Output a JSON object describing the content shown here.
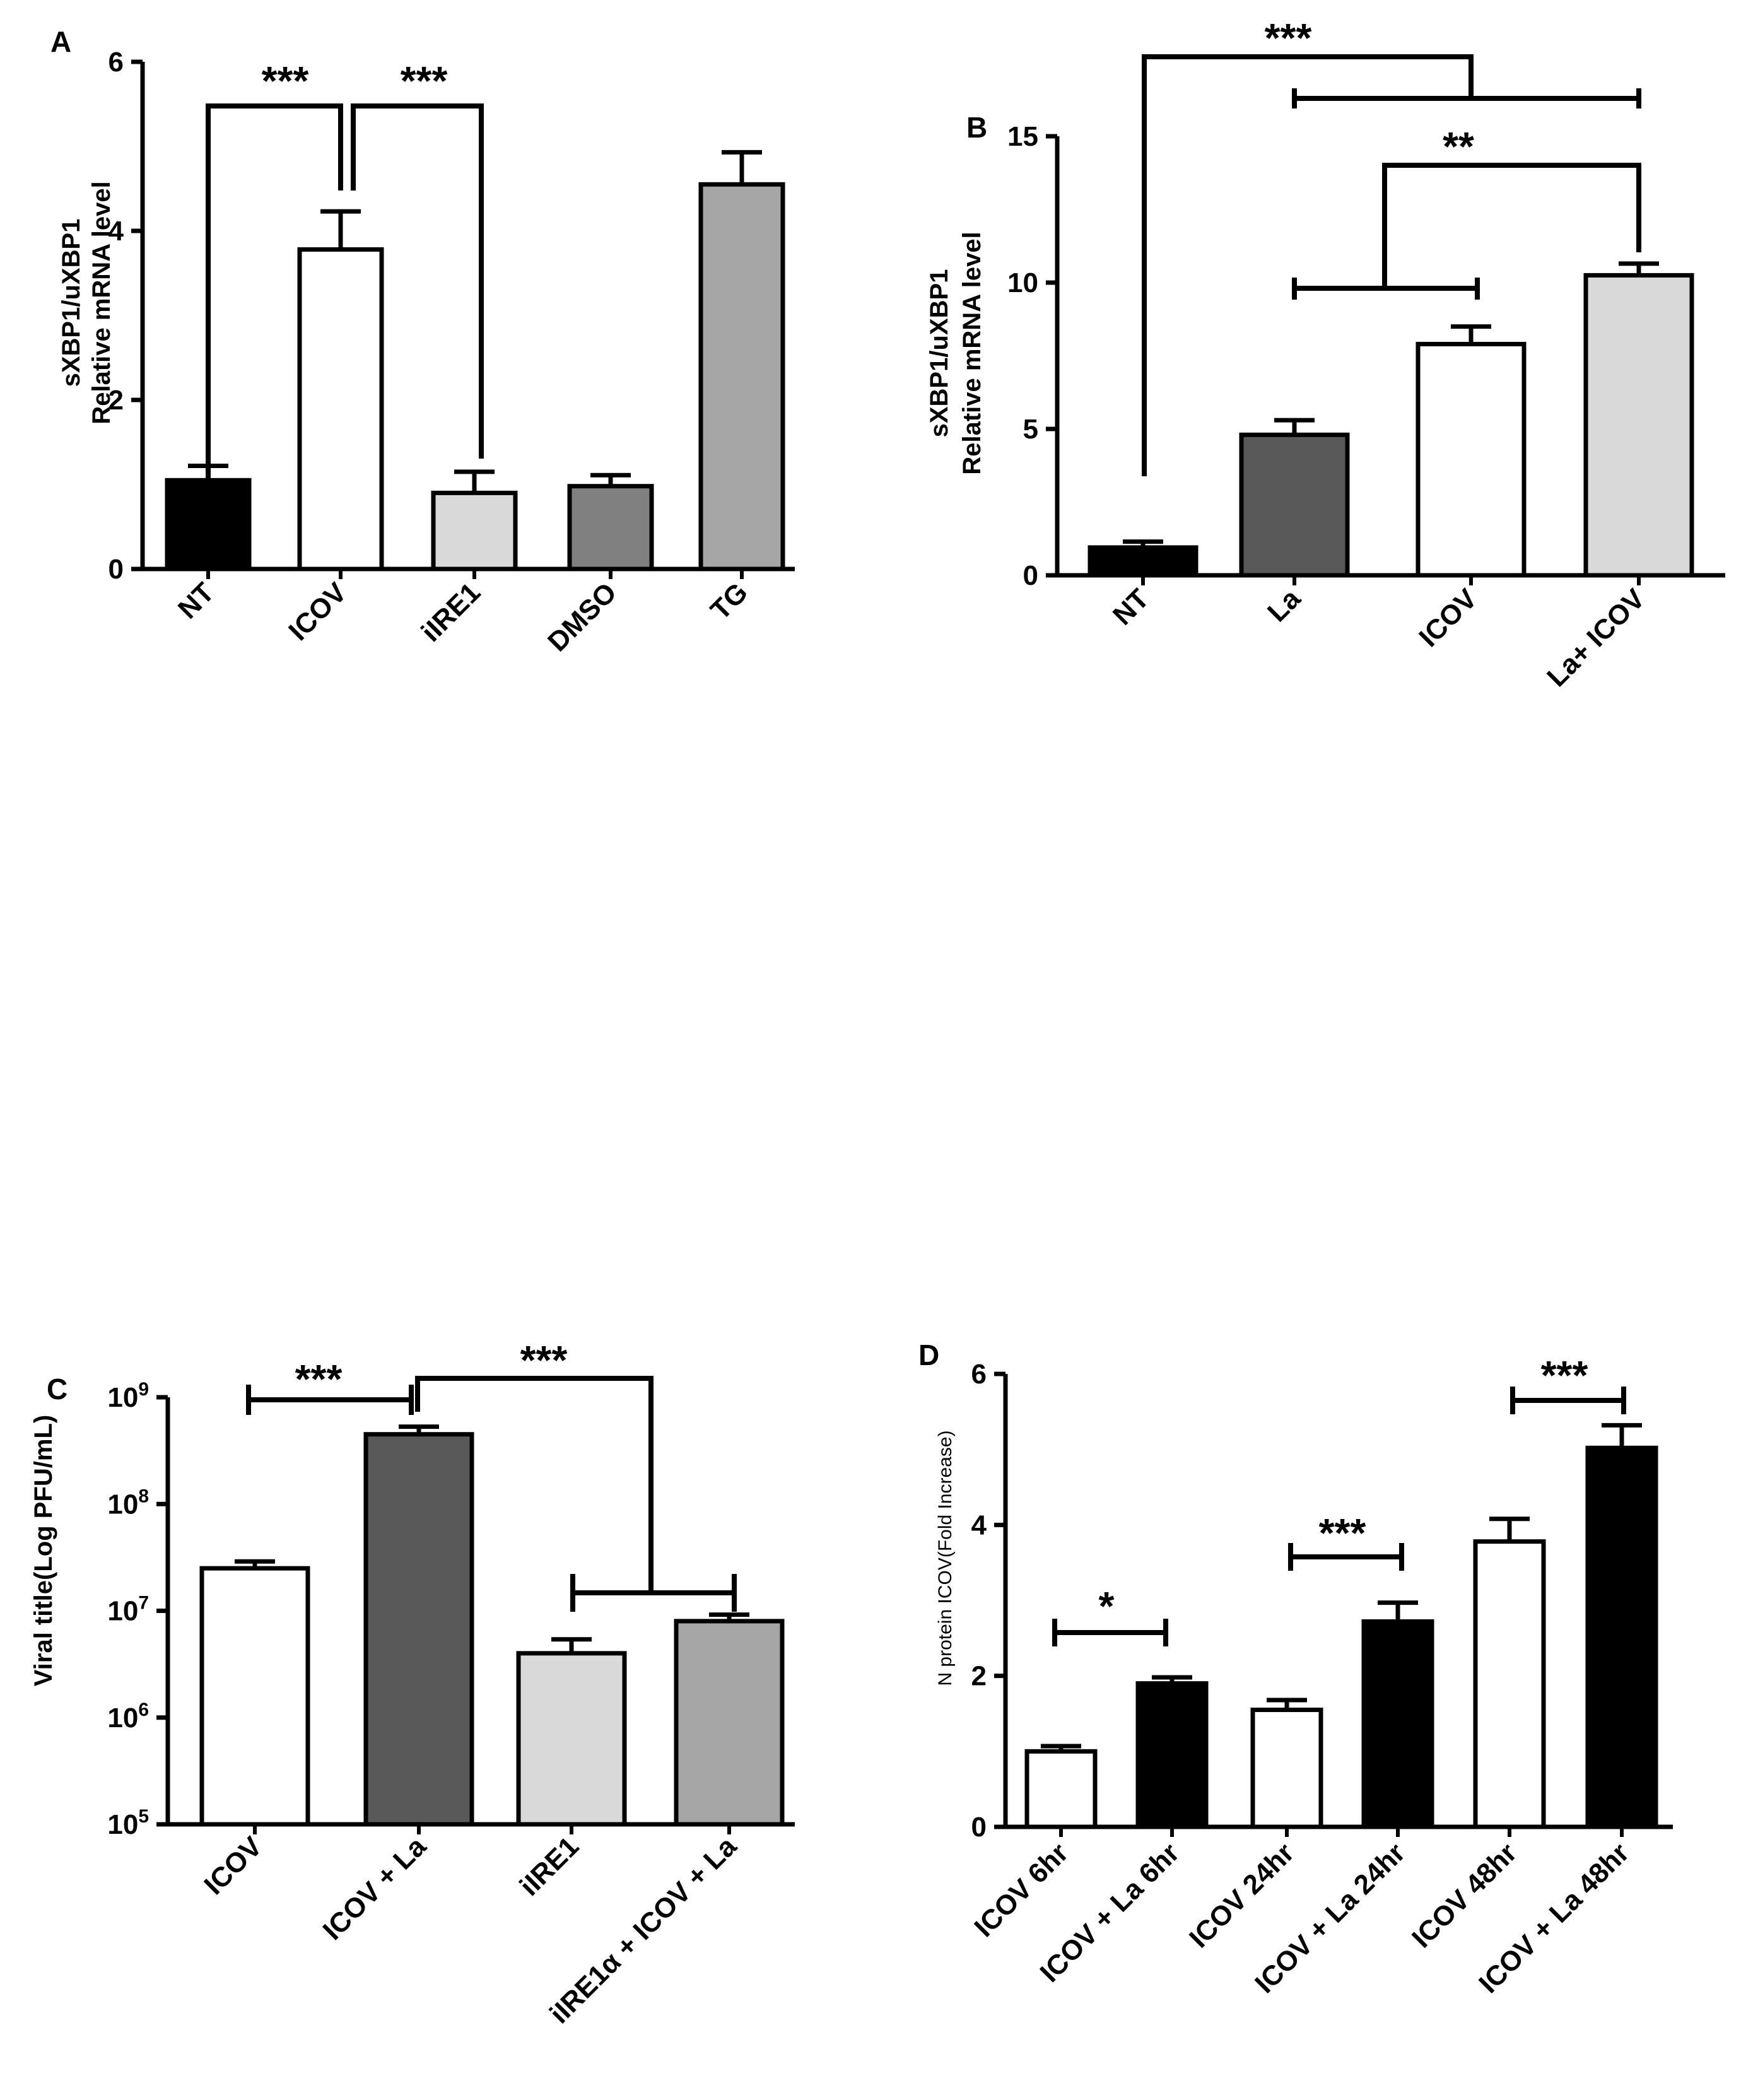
{
  "chart_data": [
    {
      "panel": "A",
      "type": "bar",
      "ylabel": [
        "sXBP1/uXBP1",
        "Relative mRNA level"
      ],
      "ylim": [
        0,
        6
      ],
      "yticks": [
        0,
        2,
        4,
        6
      ],
      "categories": [
        "NT",
        "ICOV",
        "iIRE1",
        "DMSO",
        "TG"
      ],
      "values": [
        1.05,
        3.78,
        0.9,
        0.98,
        4.55
      ],
      "errors": [
        0.17,
        0.45,
        0.25,
        0.13,
        0.38
      ],
      "colors": [
        "#000000",
        "#ffffff",
        "#d9d9d9",
        "#808080",
        "#a6a6a6"
      ],
      "significance": [
        {
          "label": "***",
          "from": "NT",
          "to": "ICOV"
        },
        {
          "label": "***",
          "from": "ICOV",
          "to": "iIRE1"
        }
      ]
    },
    {
      "panel": "B",
      "type": "bar",
      "ylabel": [
        "sXBP1/uXBP1",
        "Relative mRNA level"
      ],
      "ylim": [
        0,
        15
      ],
      "yticks": [
        0,
        5,
        10,
        15
      ],
      "categories": [
        "NT",
        "La",
        "ICOV",
        "La+ ICOV"
      ],
      "values": [
        0.95,
        4.8,
        7.9,
        10.25
      ],
      "errors": [
        0.2,
        0.5,
        0.6,
        0.4
      ],
      "colors": [
        "#000000",
        "#595959",
        "#ffffff",
        "#d9d9d9"
      ],
      "significance": [
        {
          "label": "***",
          "from": "NT",
          "to": "La, ICOV, La+ ICOV"
        },
        {
          "label": "**",
          "from": "La, ICOV",
          "to": "La+ ICOV"
        }
      ]
    },
    {
      "panel": "C",
      "type": "bar",
      "yscale": "log",
      "ylabel": [
        "Viral  title(Log PFU/mL)"
      ],
      "ylim_exponent": [
        5,
        9
      ],
      "yticks": [
        "10^5",
        "10^6",
        "10^7",
        "10^8",
        "10^9"
      ],
      "categories": [
        "ICOV",
        "ICOV + La",
        "iIRE1",
        "iIRE1α + ICOV + La"
      ],
      "values": [
        25000000,
        450000000,
        4000000,
        8000000
      ],
      "error_upper": [
        29000000,
        530000000,
        5400000,
        9200000
      ],
      "colors": [
        "#ffffff",
        "#595959",
        "#d9d9d9",
        "#a6a6a6"
      ],
      "significance": [
        {
          "label": "***",
          "from": "ICOV",
          "to": "ICOV + La"
        },
        {
          "label": "***",
          "from": "ICOV + La",
          "to": "iIRE1, iIRE1α + ICOV + La"
        }
      ]
    },
    {
      "panel": "D",
      "type": "bar",
      "ylabel": [
        "N protein ICOV(Fold Increase)"
      ],
      "ylim": [
        0,
        6
      ],
      "yticks": [
        0,
        2,
        4,
        6
      ],
      "categories": [
        "ICOV 6hr",
        "ICOV + La 6hr",
        "ICOV 24hr",
        "ICOV + La 24hr",
        "ICOV 48hr",
        "ICOV + La 48hr"
      ],
      "values": [
        1.0,
        1.9,
        1.55,
        2.72,
        3.78,
        5.02
      ],
      "errors": [
        0.07,
        0.08,
        0.13,
        0.25,
        0.3,
        0.3
      ],
      "colors": [
        "#ffffff",
        "#000000",
        "#ffffff",
        "#000000",
        "#ffffff",
        "#000000"
      ],
      "significance": [
        {
          "label": "*",
          "from": "ICOV 6hr",
          "to": "ICOV + La 6hr"
        },
        {
          "label": "***",
          "from": "ICOV 24hr",
          "to": "ICOV + La 24hr"
        },
        {
          "label": "***",
          "from": "ICOV 48hr",
          "to": "ICOV + La 48hr"
        }
      ]
    }
  ]
}
